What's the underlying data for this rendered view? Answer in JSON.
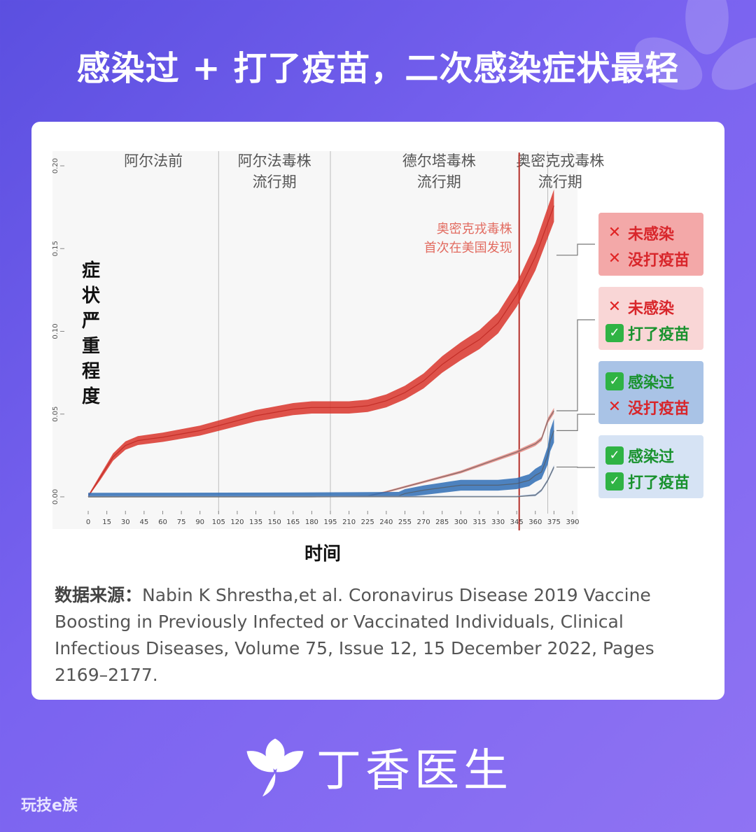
{
  "headline": "感染过 + 打了疫苗，二次感染症状最轻",
  "chart_data": {
    "type": "line",
    "y_label": "症状严重程度",
    "x_label": "时间",
    "ylim": [
      0,
      0.2
    ],
    "y_ticks": [
      "0.00",
      "0.05",
      "0.10",
      "0.15",
      "0.20"
    ],
    "xlim": [
      0,
      390
    ],
    "x_ticks": [
      "0",
      "15",
      "30",
      "45",
      "60",
      "75",
      "90",
      "105",
      "120",
      "135",
      "150",
      "165",
      "180",
      "195",
      "210",
      "225",
      "240",
      "255",
      "270",
      "285",
      "300",
      "315",
      "330",
      "345",
      "360",
      "375",
      "390"
    ],
    "periods": [
      {
        "label": "阿尔法前",
        "start": 0,
        "end": 105
      },
      {
        "label": "阿尔法毒株\n流行期",
        "start": 105,
        "end": 195
      },
      {
        "label": "德尔塔毒株\n流行期",
        "start": 195,
        "end": 370
      },
      {
        "label": "奥密克戎毒株\n流行期",
        "start": 370,
        "end": 395
      }
    ],
    "omicron_line_x": 347,
    "omicron_note": "奥密克戎毒株\n首次在美国发现",
    "series": [
      {
        "name": "未感染 没打疫苗",
        "color": "#d9352b",
        "x": [
          0,
          10,
          20,
          30,
          40,
          50,
          60,
          75,
          90,
          105,
          120,
          135,
          150,
          165,
          180,
          195,
          210,
          225,
          240,
          255,
          270,
          285,
          300,
          315,
          330,
          345,
          360,
          375
        ],
        "y": [
          0,
          0.012,
          0.024,
          0.031,
          0.034,
          0.035,
          0.036,
          0.038,
          0.04,
          0.043,
          0.046,
          0.049,
          0.051,
          0.053,
          0.054,
          0.054,
          0.054,
          0.055,
          0.058,
          0.063,
          0.07,
          0.08,
          0.088,
          0.095,
          0.105,
          0.122,
          0.145,
          0.176
        ]
      },
      {
        "name": "未感染 打了疫苗",
        "color": "#e58a82",
        "x": [
          0,
          180,
          225,
          240,
          255,
          270,
          285,
          300,
          315,
          330,
          345,
          360,
          365,
          370,
          375
        ],
        "y": [
          0,
          0,
          0.0005,
          0.003,
          0.006,
          0.009,
          0.012,
          0.015,
          0.019,
          0.023,
          0.027,
          0.032,
          0.035,
          0.046,
          0.052
        ]
      },
      {
        "name": "感染过 没打疫苗",
        "color": "#2f6db5",
        "x": [
          0,
          170,
          250,
          255,
          270,
          300,
          330,
          345,
          355,
          360,
          365,
          370,
          372,
          375
        ],
        "y": [
          0,
          0.0002,
          0.0005,
          0.002,
          0.004,
          0.007,
          0.007,
          0.008,
          0.01,
          0.013,
          0.015,
          0.025,
          0.034,
          0.04
        ]
      },
      {
        "name": "感染过 打了疫苗",
        "color": "#8aa7cf",
        "x": [
          0,
          300,
          345,
          360,
          365,
          370,
          375
        ],
        "y": [
          0,
          0,
          0,
          0.001,
          0.004,
          0.01,
          0.018
        ]
      }
    ]
  },
  "legend": [
    {
      "line1_mark": "✕",
      "line1_text": "未感染",
      "line2_mark": "✕",
      "line2_text": "没打疫苗"
    },
    {
      "line1_mark": "✕",
      "line1_text": "未感染",
      "line2_mark": "✓",
      "line2_text": "打了疫苗"
    },
    {
      "line1_mark": "✓",
      "line1_text": "感染过",
      "line2_mark": "✕",
      "line2_text": "没打疫苗"
    },
    {
      "line1_mark": "✓",
      "line1_text": "感染过",
      "line2_mark": "✓",
      "line2_text": "打了疫苗"
    }
  ],
  "source": {
    "label": "数据来源：",
    "text": "Nabin K Shrestha,et al. Coronavirus Disease 2019 Vaccine Boosting in Previously Infected or Vaccinated Individuals, Clinical Infectious Diseases, Volume 75, Issue 12, 15 December 2022, Pages 2169–2177."
  },
  "brand": "丁香医生",
  "corner_mark": "玩技e族"
}
